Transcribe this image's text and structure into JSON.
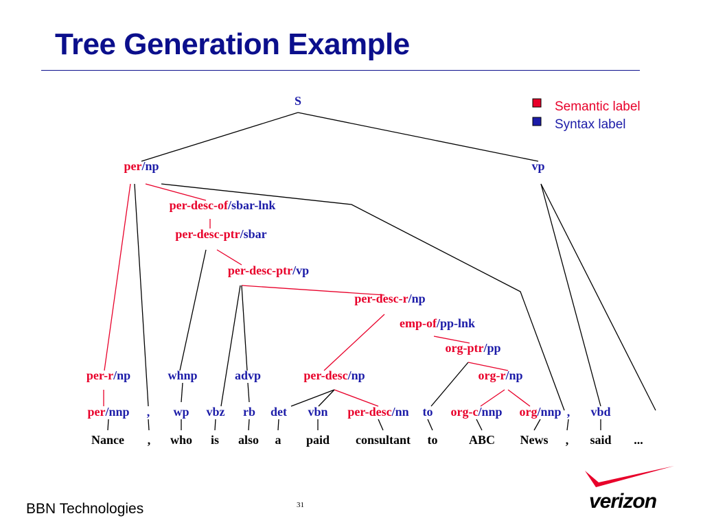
{
  "title": "Tree Generation Example",
  "footer": {
    "company": "BBN Technologies",
    "page_number": "31",
    "logo_text": "verizon"
  },
  "legend": {
    "semantic": {
      "label": "Semantic label",
      "color": "#e8002a"
    },
    "syntax": {
      "label": "Syntax label",
      "color": "#1c1ca8"
    }
  },
  "tree": {
    "nodes": [
      {
        "id": "s",
        "parts": [
          {
            "t": "S",
            "k": "syn"
          }
        ]
      },
      {
        "id": "per-np",
        "parts": [
          {
            "t": "per",
            "k": "sem"
          },
          {
            "t": "/",
            "k": "sep"
          },
          {
            "t": "np",
            "k": "syn"
          }
        ]
      },
      {
        "id": "vp",
        "parts": [
          {
            "t": "vp",
            "k": "syn"
          }
        ]
      },
      {
        "id": "per-desc-of-sbar-lnk",
        "parts": [
          {
            "t": "per-desc-of",
            "k": "sem"
          },
          {
            "t": "/",
            "k": "sep"
          },
          {
            "t": "sbar-lnk",
            "k": "syn"
          }
        ]
      },
      {
        "id": "per-desc-ptr-sbar",
        "parts": [
          {
            "t": "per-desc-ptr",
            "k": "sem"
          },
          {
            "t": "/",
            "k": "sep"
          },
          {
            "t": "sbar",
            "k": "syn"
          }
        ]
      },
      {
        "id": "per-desc-ptr-vp",
        "parts": [
          {
            "t": "per-desc-ptr",
            "k": "sem"
          },
          {
            "t": "/",
            "k": "sep"
          },
          {
            "t": "vp",
            "k": "syn"
          }
        ]
      },
      {
        "id": "per-desc-r-np",
        "parts": [
          {
            "t": "per-desc-r",
            "k": "sem"
          },
          {
            "t": "/",
            "k": "sep"
          },
          {
            "t": "np",
            "k": "syn"
          }
        ]
      },
      {
        "id": "emp-of-pp-lnk",
        "parts": [
          {
            "t": "emp-of",
            "k": "sem"
          },
          {
            "t": "/",
            "k": "sep"
          },
          {
            "t": "pp-lnk",
            "k": "syn"
          }
        ]
      },
      {
        "id": "org-ptr-pp",
        "parts": [
          {
            "t": "org-ptr",
            "k": "sem"
          },
          {
            "t": "/",
            "k": "sep"
          },
          {
            "t": "pp",
            "k": "syn"
          }
        ]
      },
      {
        "id": "per-r-np",
        "parts": [
          {
            "t": "per-r",
            "k": "sem"
          },
          {
            "t": "/",
            "k": "sep"
          },
          {
            "t": "np",
            "k": "syn"
          }
        ]
      },
      {
        "id": "whnp",
        "parts": [
          {
            "t": "whnp",
            "k": "syn"
          }
        ]
      },
      {
        "id": "advp",
        "parts": [
          {
            "t": "advp",
            "k": "syn"
          }
        ]
      },
      {
        "id": "per-desc-np",
        "parts": [
          {
            "t": "per-desc",
            "k": "sem"
          },
          {
            "t": "/",
            "k": "sep"
          },
          {
            "t": "np",
            "k": "syn"
          }
        ]
      },
      {
        "id": "org-r-np",
        "parts": [
          {
            "t": "org-r",
            "k": "sem"
          },
          {
            "t": "/",
            "k": "sep"
          },
          {
            "t": "np",
            "k": "syn"
          }
        ]
      },
      {
        "id": "per-nnp",
        "parts": [
          {
            "t": "per",
            "k": "sem"
          },
          {
            "t": "/",
            "k": "sep"
          },
          {
            "t": "nnp",
            "k": "syn"
          }
        ]
      },
      {
        "id": "pos-comma-1",
        "parts": [
          {
            "t": ",",
            "k": "syn"
          }
        ]
      },
      {
        "id": "wp",
        "parts": [
          {
            "t": "wp",
            "k": "syn"
          }
        ]
      },
      {
        "id": "vbz",
        "parts": [
          {
            "t": "vbz",
            "k": "syn"
          }
        ]
      },
      {
        "id": "rb",
        "parts": [
          {
            "t": "rb",
            "k": "syn"
          }
        ]
      },
      {
        "id": "det",
        "parts": [
          {
            "t": "det",
            "k": "syn"
          }
        ]
      },
      {
        "id": "vbn",
        "parts": [
          {
            "t": "vbn",
            "k": "syn"
          }
        ]
      },
      {
        "id": "per-desc-nn",
        "parts": [
          {
            "t": "per-desc",
            "k": "sem"
          },
          {
            "t": "/",
            "k": "sep"
          },
          {
            "t": "nn",
            "k": "syn"
          }
        ]
      },
      {
        "id": "to-tag",
        "parts": [
          {
            "t": "to",
            "k": "syn"
          }
        ]
      },
      {
        "id": "org-c-nnp",
        "parts": [
          {
            "t": "org-c",
            "k": "sem"
          },
          {
            "t": "/",
            "k": "sep"
          },
          {
            "t": "nnp",
            "k": "syn"
          }
        ]
      },
      {
        "id": "org-nnp",
        "parts": [
          {
            "t": "org",
            "k": "sem"
          },
          {
            "t": "/",
            "k": "sep"
          },
          {
            "t": "nnp",
            "k": "syn"
          }
        ]
      },
      {
        "id": "pos-comma-2",
        "parts": [
          {
            "t": ",",
            "k": "syn"
          }
        ]
      },
      {
        "id": "vbd",
        "parts": [
          {
            "t": "vbd",
            "k": "syn"
          }
        ]
      }
    ],
    "words": [
      {
        "id": "w-nance",
        "text": "Nance"
      },
      {
        "id": "w-comma-1",
        "text": ","
      },
      {
        "id": "w-who",
        "text": "who"
      },
      {
        "id": "w-is",
        "text": "is"
      },
      {
        "id": "w-also",
        "text": "also"
      },
      {
        "id": "w-a",
        "text": "a"
      },
      {
        "id": "w-paid",
        "text": "paid"
      },
      {
        "id": "w-consultant",
        "text": "consultant"
      },
      {
        "id": "w-to",
        "text": "to"
      },
      {
        "id": "w-abc",
        "text": "ABC"
      },
      {
        "id": "w-news",
        "text": "News"
      },
      {
        "id": "w-comma-2",
        "text": ","
      },
      {
        "id": "w-said",
        "text": "said"
      },
      {
        "id": "w-ellipsis",
        "text": "..."
      }
    ],
    "edges": [
      {
        "from": "s",
        "to": "per-np",
        "k": "syn"
      },
      {
        "from": "s",
        "to": "vp",
        "k": "syn"
      },
      {
        "from": "per-np",
        "to": "per-desc-of-sbar-lnk",
        "k": "sem"
      },
      {
        "from": "per-np",
        "to": "per-r-np",
        "k": "sem"
      },
      {
        "from": "per-np",
        "to": "pos-comma-1",
        "k": "syn"
      },
      {
        "from": "per-np",
        "to": "pos-comma-2",
        "k": "syn"
      },
      {
        "from": "per-desc-of-sbar-lnk",
        "to": "per-desc-ptr-sbar",
        "k": "sem"
      },
      {
        "from": "per-desc-ptr-sbar",
        "to": "per-desc-ptr-vp",
        "k": "sem"
      },
      {
        "from": "per-desc-ptr-sbar",
        "to": "whnp",
        "k": "syn"
      },
      {
        "from": "per-desc-ptr-vp",
        "to": "per-desc-r-np",
        "k": "sem"
      },
      {
        "from": "per-desc-ptr-vp",
        "to": "vbz",
        "k": "syn"
      },
      {
        "from": "per-desc-ptr-vp",
        "to": "advp",
        "k": "syn"
      },
      {
        "from": "per-desc-r-np",
        "to": "per-desc-np",
        "k": "sem"
      },
      {
        "from": "emp-of-pp-lnk",
        "to": "org-ptr-pp",
        "k": "sem"
      },
      {
        "from": "org-ptr-pp",
        "to": "to-tag",
        "k": "syn"
      },
      {
        "from": "org-ptr-pp",
        "to": "org-r-np",
        "k": "sem"
      },
      {
        "from": "per-r-np",
        "to": "per-nnp",
        "k": "sem"
      },
      {
        "from": "whnp",
        "to": "wp",
        "k": "syn"
      },
      {
        "from": "advp",
        "to": "rb",
        "k": "syn"
      },
      {
        "from": "per-desc-np",
        "to": "det",
        "k": "syn"
      },
      {
        "from": "per-desc-np",
        "to": "vbn",
        "k": "syn"
      },
      {
        "from": "per-desc-np",
        "to": "per-desc-nn",
        "k": "sem"
      },
      {
        "from": "org-r-np",
        "to": "org-c-nnp",
        "k": "sem"
      },
      {
        "from": "org-r-np",
        "to": "org-nnp",
        "k": "sem"
      },
      {
        "from": "vp",
        "to": "vbd",
        "k": "syn"
      },
      {
        "from": "vp",
        "to": "w-ellipsis",
        "k": "syn"
      },
      {
        "from": "per-nnp",
        "to": "w-nance",
        "k": "syn"
      },
      {
        "from": "pos-comma-1",
        "to": "w-comma-1",
        "k": "syn"
      },
      {
        "from": "wp",
        "to": "w-who",
        "k": "syn"
      },
      {
        "from": "vbz",
        "to": "w-is",
        "k": "syn"
      },
      {
        "from": "rb",
        "to": "w-also",
        "k": "syn"
      },
      {
        "from": "det",
        "to": "w-a",
        "k": "syn"
      },
      {
        "from": "vbn",
        "to": "w-paid",
        "k": "syn"
      },
      {
        "from": "per-desc-nn",
        "to": "w-consultant",
        "k": "syn"
      },
      {
        "from": "to-tag",
        "to": "w-to",
        "k": "syn"
      },
      {
        "from": "org-c-nnp",
        "to": "w-abc",
        "k": "syn"
      },
      {
        "from": "org-nnp",
        "to": "w-news",
        "k": "syn"
      },
      {
        "from": "pos-comma-2",
        "to": "w-comma-2",
        "k": "syn"
      },
      {
        "from": "vbd",
        "to": "w-said",
        "k": "syn"
      }
    ]
  }
}
